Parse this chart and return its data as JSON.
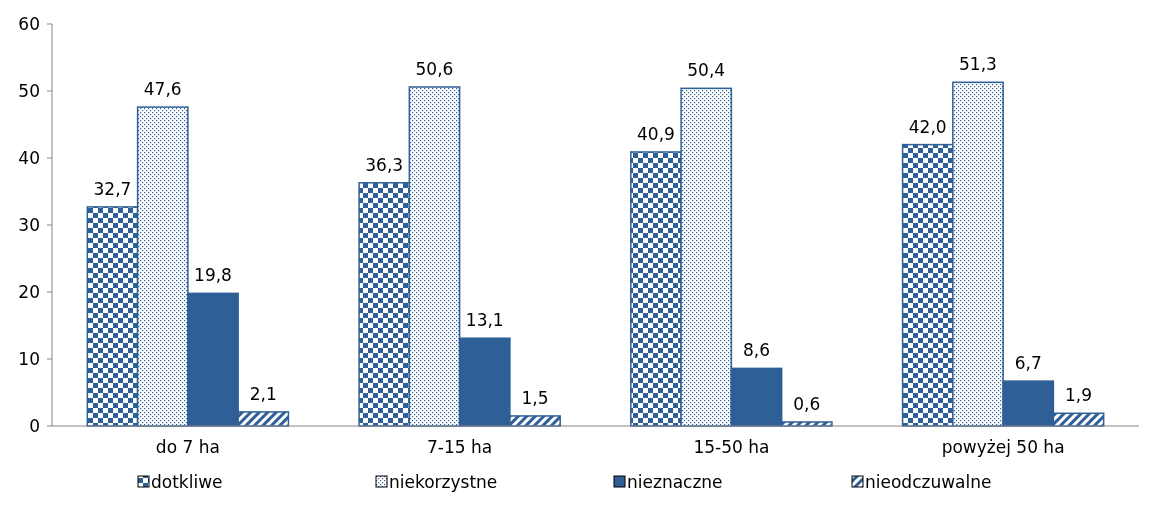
{
  "chart_data": {
    "type": "bar",
    "categories": [
      "do 7 ha",
      "7-15 ha",
      "15-50 ha",
      "powyżej 50 ha"
    ],
    "series": [
      {
        "name": "dotkliwe",
        "color": "#2f5f97",
        "values": [
          32.7,
          36.3,
          40.9,
          42.0
        ],
        "value_labels": [
          "32,7",
          "36,3",
          "40,9",
          "42,0"
        ]
      },
      {
        "name": "niekorzystne",
        "color": "#2f5f97",
        "values": [
          47.6,
          50.6,
          50.4,
          51.3
        ],
        "value_labels": [
          "47,6",
          "50,6",
          "50,4",
          "51,3"
        ]
      },
      {
        "name": "nieznaczne",
        "color": "#2f5f97",
        "values": [
          19.8,
          13.1,
          8.6,
          6.7
        ],
        "value_labels": [
          "19,8",
          "13,1",
          "8,6",
          "6,7"
        ]
      },
      {
        "name": "nieodczuwalne",
        "color": "#2f5f97",
        "values": [
          2.1,
          1.5,
          0.6,
          1.9
        ],
        "value_labels": [
          "2,1",
          "1,5",
          "0,6",
          "1,9"
        ]
      }
    ],
    "ylim": [
      0,
      60
    ],
    "yticks": [
      0,
      10,
      20,
      30,
      40,
      50,
      60
    ],
    "grid": false,
    "legend": "bottom"
  }
}
